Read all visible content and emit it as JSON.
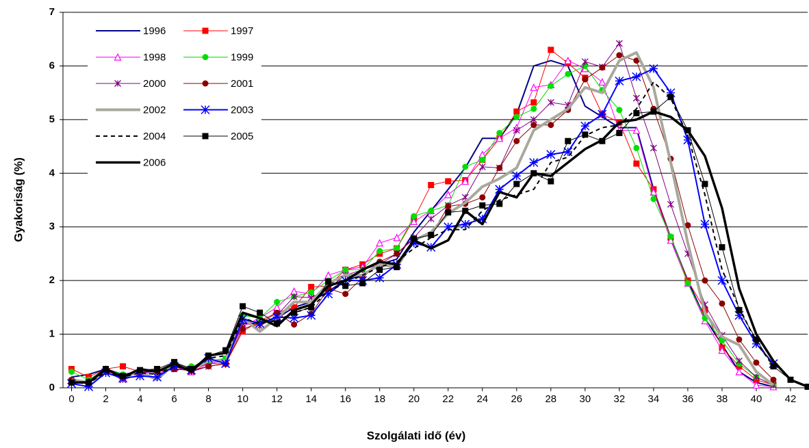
{
  "chart_data": {
    "type": "line",
    "xlabel": "Szolgálati idő (év)",
    "ylabel": "Gyakoriság (%)",
    "x": [
      0,
      1,
      2,
      3,
      4,
      5,
      6,
      7,
      8,
      9,
      10,
      11,
      12,
      13,
      14,
      15,
      16,
      17,
      18,
      19,
      20,
      21,
      22,
      23,
      24,
      25,
      26,
      27,
      28,
      29,
      30,
      31,
      32,
      33,
      34,
      35,
      36,
      37,
      38,
      39,
      40,
      41,
      42,
      43
    ],
    "xlim": [
      -0.5,
      43
    ],
    "xticks": [
      0,
      2,
      4,
      6,
      8,
      10,
      12,
      14,
      16,
      18,
      20,
      22,
      24,
      26,
      28,
      30,
      32,
      34,
      36,
      38,
      40,
      42
    ],
    "ylim": [
      0,
      7
    ],
    "yticks": [
      0,
      1,
      2,
      3,
      4,
      5,
      6,
      7
    ],
    "grid": true,
    "legend": "upper left",
    "series": [
      {
        "name": "1996",
        "color": "#00008b",
        "marker": "none",
        "width": 2,
        "dash": "solid",
        "values": [
          0.2,
          0.25,
          0.35,
          0.25,
          0.3,
          0.3,
          0.4,
          0.35,
          0.5,
          0.5,
          1.2,
          1.2,
          1.3,
          1.5,
          1.6,
          1.8,
          2.0,
          2.1,
          2.3,
          2.4,
          2.9,
          3.3,
          3.7,
          4.1,
          4.65,
          4.65,
          5.1,
          6.0,
          6.1,
          6.0,
          5.25,
          5.05,
          4.85,
          4.85,
          3.7,
          2.8,
          2.0,
          1.3,
          0.8,
          0.3,
          0.1,
          0.02,
          null,
          null
        ]
      },
      {
        "name": "1997",
        "color": "#ff0000",
        "marker": "square",
        "width": 1,
        "dash": "solid",
        "values": [
          0.35,
          0.2,
          0.35,
          0.4,
          0.3,
          0.35,
          0.35,
          0.35,
          0.45,
          0.45,
          1.05,
          1.25,
          1.4,
          1.5,
          1.88,
          1.9,
          2.2,
          2.3,
          2.5,
          2.6,
          3.15,
          3.78,
          3.85,
          3.87,
          4.25,
          4.65,
          5.15,
          5.32,
          6.3,
          6.05,
          5.78,
          5.1,
          4.95,
          4.18,
          3.7,
          2.8,
          2.0,
          1.45,
          0.75,
          0.4,
          0.15,
          0.05,
          null,
          null
        ]
      },
      {
        "name": "1998",
        "color": "#ff00ff",
        "marker": "triangle",
        "width": 1,
        "dash": "solid",
        "values": [
          0.15,
          0.1,
          0.35,
          0.2,
          0.3,
          0.25,
          0.4,
          0.3,
          0.45,
          0.5,
          1.15,
          1.3,
          1.5,
          1.8,
          1.75,
          2.1,
          2.2,
          2.25,
          2.7,
          2.8,
          3.1,
          3.3,
          3.6,
          3.85,
          4.35,
          4.65,
          4.85,
          5.6,
          5.65,
          6.1,
          5.95,
          5.7,
          4.8,
          4.8,
          3.65,
          2.75,
          1.95,
          1.25,
          0.7,
          0.3,
          0.05,
          0.02,
          null,
          null
        ]
      },
      {
        "name": "1999",
        "color": "#00e000",
        "marker": "circle",
        "width": 1,
        "dash": "solid",
        "values": [
          0.3,
          0.15,
          0.35,
          0.25,
          0.3,
          0.3,
          0.4,
          0.4,
          0.5,
          0.55,
          1.35,
          1.3,
          1.6,
          1.7,
          1.78,
          2.0,
          2.2,
          2.2,
          2.55,
          2.6,
          3.2,
          3.3,
          3.4,
          4.12,
          4.25,
          4.75,
          5.05,
          5.2,
          5.63,
          5.85,
          6.0,
          5.55,
          5.18,
          4.47,
          3.52,
          2.82,
          1.95,
          1.3,
          0.88,
          0.45,
          0.2,
          0.05,
          null,
          null
        ]
      },
      {
        "name": "2000",
        "color": "#800080",
        "marker": "asterisk",
        "width": 1,
        "dash": "solid",
        "values": [
          0.12,
          0.1,
          0.3,
          0.15,
          0.25,
          0.2,
          0.45,
          0.3,
          0.4,
          0.45,
          1.2,
          1.15,
          1.35,
          1.7,
          1.68,
          1.85,
          2.1,
          2.2,
          2.3,
          2.5,
          2.8,
          3.15,
          3.4,
          3.55,
          4.12,
          4.1,
          4.8,
          5.0,
          5.32,
          5.27,
          6.08,
          5.98,
          6.42,
          5.4,
          4.47,
          3.42,
          2.5,
          1.55,
          0.98,
          0.5,
          0.2,
          0.05,
          null,
          null
        ]
      },
      {
        "name": "2001",
        "color": "#8b0000",
        "marker": "circle",
        "width": 1,
        "dash": "solid",
        "values": [
          0.15,
          0.12,
          0.3,
          0.2,
          0.3,
          0.3,
          0.35,
          0.32,
          0.4,
          0.45,
          1.1,
          1.2,
          1.4,
          1.18,
          1.38,
          1.85,
          1.75,
          2.05,
          2.35,
          2.5,
          2.78,
          2.85,
          3.38,
          3.43,
          3.55,
          4.1,
          4.6,
          4.9,
          4.9,
          5.18,
          5.75,
          5.97,
          6.2,
          6.1,
          5.2,
          4.27,
          3.03,
          2.0,
          1.57,
          0.9,
          0.47,
          0.15,
          null,
          null
        ]
      },
      {
        "name": "2002",
        "color": "#a8a89c",
        "marker": "none",
        "width": 4,
        "dash": "solid",
        "values": [
          0.15,
          0.1,
          0.3,
          0.2,
          0.3,
          0.15,
          0.45,
          0.35,
          0.5,
          0.5,
          1.3,
          1.05,
          1.3,
          1.6,
          1.6,
          1.95,
          2.1,
          2.1,
          2.3,
          2.25,
          2.75,
          2.9,
          3.25,
          3.45,
          3.75,
          3.9,
          4.1,
          4.8,
          5.0,
          5.2,
          5.6,
          5.5,
          6.1,
          6.25,
          5.6,
          4.2,
          2.7,
          1.4,
          0.95,
          0.8,
          0.3,
          0.05,
          null,
          null
        ]
      },
      {
        "name": "2003",
        "color": "#0000ff",
        "marker": "star",
        "width": 2,
        "dash": "solid",
        "values": [
          0.08,
          0.02,
          0.28,
          0.18,
          0.22,
          0.2,
          0.4,
          0.33,
          0.55,
          0.45,
          1.28,
          1.2,
          1.32,
          1.3,
          1.35,
          1.75,
          2.0,
          2.0,
          2.05,
          2.3,
          2.7,
          2.62,
          3.0,
          3.05,
          3.15,
          3.7,
          3.95,
          4.2,
          4.35,
          4.4,
          4.88,
          5.1,
          5.72,
          5.8,
          5.95,
          5.5,
          4.62,
          3.05,
          2.0,
          1.35,
          0.82,
          0.45,
          null,
          null
        ]
      },
      {
        "name": "2004",
        "color": "#000000",
        "marker": "none",
        "width": 2,
        "dash": "dashed",
        "values": [
          0.1,
          0.08,
          0.3,
          0.2,
          0.28,
          0.25,
          0.4,
          0.35,
          0.55,
          0.6,
          1.3,
          1.2,
          1.25,
          1.4,
          1.5,
          1.8,
          1.95,
          2.1,
          2.25,
          2.35,
          2.6,
          2.8,
          2.95,
          2.95,
          3.3,
          3.5,
          3.6,
          3.7,
          4.2,
          4.3,
          4.7,
          4.85,
          4.9,
          5.2,
          5.7,
          5.4,
          4.7,
          3.6,
          2.2,
          1.5,
          0.85,
          0.4,
          null,
          null
        ]
      },
      {
        "name": "2005",
        "color": "#000000",
        "marker": "square",
        "width": 1,
        "dash": "solid",
        "values": [
          0.1,
          0.1,
          0.35,
          0.22,
          0.33,
          0.35,
          0.48,
          0.35,
          0.6,
          0.7,
          1.52,
          1.4,
          1.2,
          1.4,
          1.5,
          1.98,
          1.9,
          1.95,
          2.2,
          2.25,
          2.78,
          2.85,
          3.27,
          3.3,
          3.4,
          3.43,
          3.8,
          4.0,
          3.85,
          4.6,
          4.72,
          4.6,
          4.75,
          5.12,
          5.15,
          5.42,
          4.8,
          3.8,
          2.62,
          1.45,
          0.9,
          0.4,
          0.15,
          0.02
        ]
      },
      {
        "name": "2006",
        "color": "#000000",
        "marker": "none",
        "width": 3.5,
        "dash": "solid",
        "values": [
          0.1,
          0.1,
          0.35,
          0.2,
          0.35,
          0.3,
          0.45,
          0.3,
          0.6,
          0.65,
          1.4,
          1.3,
          1.15,
          1.45,
          1.55,
          1.9,
          2.0,
          2.2,
          2.35,
          2.3,
          2.75,
          2.6,
          2.75,
          3.3,
          3.05,
          3.65,
          3.55,
          4.0,
          3.95,
          4.2,
          4.45,
          4.62,
          4.95,
          5.0,
          5.15,
          5.05,
          4.8,
          4.32,
          3.35,
          1.85,
          1.0,
          0.5,
          0.15,
          0.02
        ]
      }
    ]
  }
}
